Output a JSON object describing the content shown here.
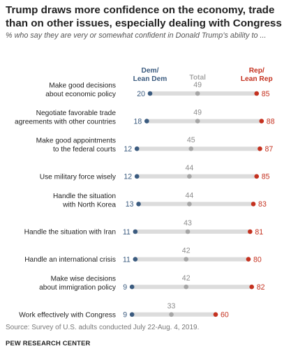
{
  "title": "Trump draws more confidence on the economy, trade than on other issues, especially dealing with Congress",
  "subtitle": "% who say they are very or somewhat confident in Donald Trump’s ability to ...",
  "source": "Source: Survey of U.S. adults conducted July 22-Aug. 4, 2019.",
  "organization": "PEW RESEARCH CENTER",
  "colors": {
    "dem": "#3b5b7f",
    "total": "#a6a6a6",
    "rep": "#c4311f",
    "track": "#dcdcdc"
  },
  "chart_data": {
    "type": "dot",
    "xlim": [
      0,
      100
    ],
    "legend": {
      "dem": [
        "Dem/",
        "Lean Dem"
      ],
      "total": [
        "Total"
      ],
      "rep": [
        "Rep/",
        "Lean Rep"
      ]
    },
    "categories": [
      [
        "Make good decisions",
        "about economic policy"
      ],
      [
        "Negotiate favorable trade",
        "agreements with other countries"
      ],
      [
        "Make good appointments",
        "to the federal courts"
      ],
      [
        "Use military force wisely"
      ],
      [
        "Handle the situation",
        "with North Korea"
      ],
      [
        "Handle the situation with Iran"
      ],
      [
        "Handle an international crisis"
      ],
      [
        "Make wise decisions",
        "about immigration policy"
      ],
      [
        "Work effectively with Congress"
      ]
    ],
    "series": [
      {
        "name": "Dem/Lean Dem",
        "values": [
          20,
          18,
          12,
          12,
          13,
          11,
          11,
          9,
          9
        ]
      },
      {
        "name": "Total",
        "values": [
          49,
          49,
          45,
          44,
          44,
          43,
          42,
          42,
          33
        ]
      },
      {
        "name": "Rep/Lean Rep",
        "values": [
          85,
          88,
          87,
          85,
          83,
          81,
          80,
          82,
          60
        ]
      }
    ]
  }
}
